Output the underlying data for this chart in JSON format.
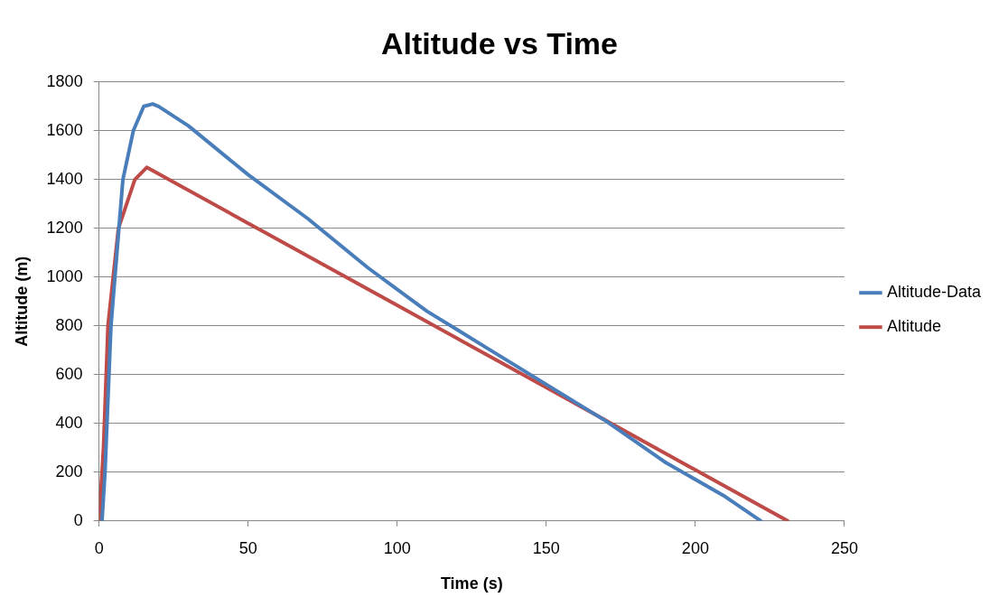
{
  "chart_data": {
    "type": "line",
    "title": "Altitude vs Time",
    "xlabel": "Time (s)",
    "ylabel": "Altitude (m)",
    "xlim": [
      0,
      250
    ],
    "xticks": [
      0,
      50,
      100,
      150,
      200,
      250
    ],
    "ylim": [
      0,
      1800
    ],
    "yticks": [
      0,
      200,
      400,
      600,
      800,
      1000,
      1200,
      1400,
      1600,
      1800
    ],
    "grid": "y",
    "legend": "right",
    "marker": "none",
    "line_style": "solid",
    "series": [
      {
        "name": "Altitude-Data",
        "color": "#4a7ebb",
        "x": [
          1,
          2,
          4,
          8,
          11.5,
          15,
          18,
          20,
          30,
          50,
          70,
          90,
          100,
          110,
          130,
          150,
          170,
          190,
          210,
          222
        ],
        "values": [
          0,
          200,
          800,
          1400,
          1600,
          1700,
          1710,
          1700,
          1620,
          1420,
          1240,
          1040,
          950,
          860,
          710,
          560,
          410,
          240,
          100,
          0
        ]
      },
      {
        "name": "Altitude",
        "color": "#be4b48",
        "x": [
          0,
          1.5,
          3,
          6.5,
          12,
          16,
          50,
          100,
          150,
          200,
          231
        ],
        "values": [
          0,
          300,
          800,
          1200,
          1400,
          1450,
          1221,
          884,
          547,
          209,
          0
        ]
      }
    ]
  }
}
